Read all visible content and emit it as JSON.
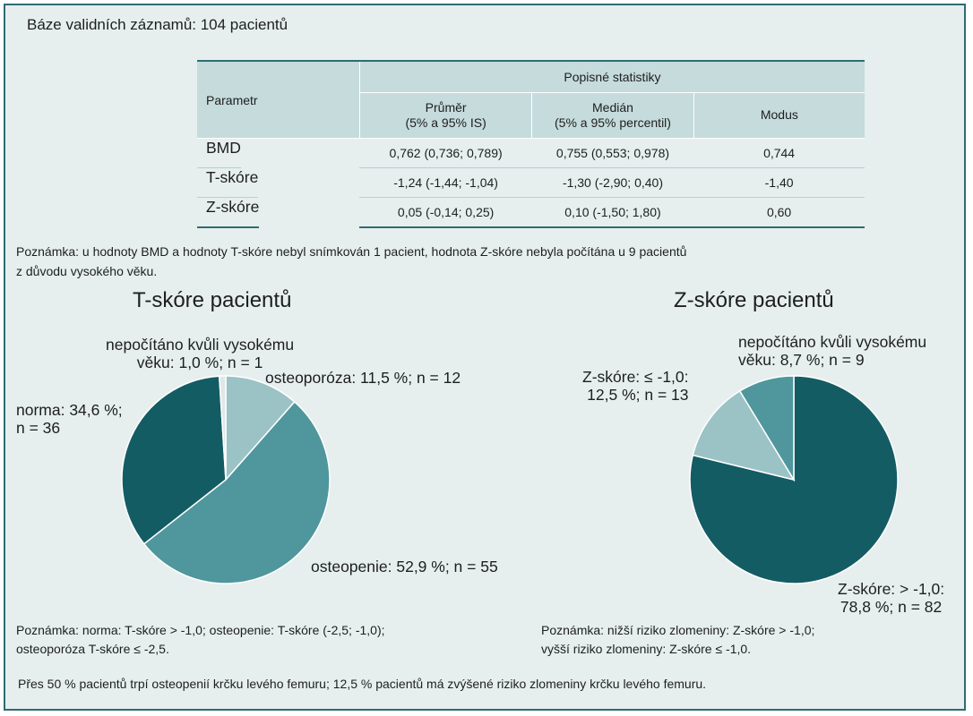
{
  "header": {
    "base_records": "Báze validních záznamů: 104 pacientů"
  },
  "table": {
    "param_header": "Parametr",
    "group_header": "Popisné statistiky",
    "columns": [
      {
        "line1": "Průměr",
        "line2": "(5% a 95% IS)"
      },
      {
        "line1": "Medián",
        "line2": "(5% a 95% percentil)"
      },
      {
        "line1": "Modus",
        "line2": ""
      }
    ],
    "rows": [
      {
        "name": "BMD",
        "mean": "0,762 (0,736; 0,789)",
        "median": "0,755 (0,553; 0,978)",
        "mode": "0,744"
      },
      {
        "name": "T-skóre",
        "mean": "-1,24 (-1,44; -1,04)",
        "median": "-1,30 (-2,90; 0,40)",
        "mode": "-1,40"
      },
      {
        "name": "Z-skóre",
        "mean": "0,05 (-0,14; 0,25)",
        "median": "0,10 (-1,50; 1,80)",
        "mode": "0,60"
      }
    ]
  },
  "note": {
    "line1": "Poznámka: u hodnoty BMD a hodnoty T-skóre nebyl snímkován 1 pacient, hodnota Z-skóre nebyla počítána u 9 pacientů",
    "line2": "z důvodu vysokého věku."
  },
  "chart_data": [
    {
      "type": "pie",
      "title": "T-skóre pacientů",
      "slices": [
        {
          "label_line1": "osteoporóza: 11,5 %; n = 12",
          "label_line2": "",
          "percent": 11.5,
          "n": 12,
          "color": "#9bc3c6"
        },
        {
          "label_line1": "osteopenie: 52,9 %; n = 55",
          "label_line2": "",
          "percent": 52.9,
          "n": 55,
          "color": "#4f979c"
        },
        {
          "label_line1": "norma: 34,6 %;",
          "label_line2": "n = 36",
          "percent": 34.6,
          "n": 36,
          "color": "#145c63"
        },
        {
          "label_line1": "nepočítáno kvůli vysokému",
          "label_line2": "věku: 1,0 %; n = 1",
          "percent": 1.0,
          "n": 1,
          "color": "#dfe7e7"
        }
      ],
      "note_line1": "Poznámka: norma: T-skóre > -1,0; osteopenie: T-skóre (-2,5; -1,0);",
      "note_line2": "osteoporóza T-skóre ≤ -2,5."
    },
    {
      "type": "pie",
      "title": "Z-skóre pacientů",
      "slices": [
        {
          "label_line1": "Z-skóre: > -1,0:",
          "label_line2": "78,8 %; n = 82",
          "percent": 78.8,
          "n": 82,
          "color": "#145c63"
        },
        {
          "label_line1": "Z-skóre: ≤ -1,0:",
          "label_line2": "12,5 %; n = 13",
          "percent": 12.5,
          "n": 13,
          "color": "#9bc3c6"
        },
        {
          "label_line1": "nepočítáno kvůli vysokému",
          "label_line2": "věku: 8,7 %; n = 9",
          "percent": 8.7,
          "n": 9,
          "color": "#4f979c"
        }
      ],
      "note_line1": "Poznámka: nižší riziko zlomeniny: Z-skóre > -1,0;",
      "note_line2": "vyšší riziko zlomeniny: Z-skóre ≤ -1,0."
    }
  ],
  "footer": "Přes 50 % pacientů trpí osteopenií krčku levého femuru; 12,5 % pacientů má zvýšené riziko zlomeniny krčku levého femuru."
}
